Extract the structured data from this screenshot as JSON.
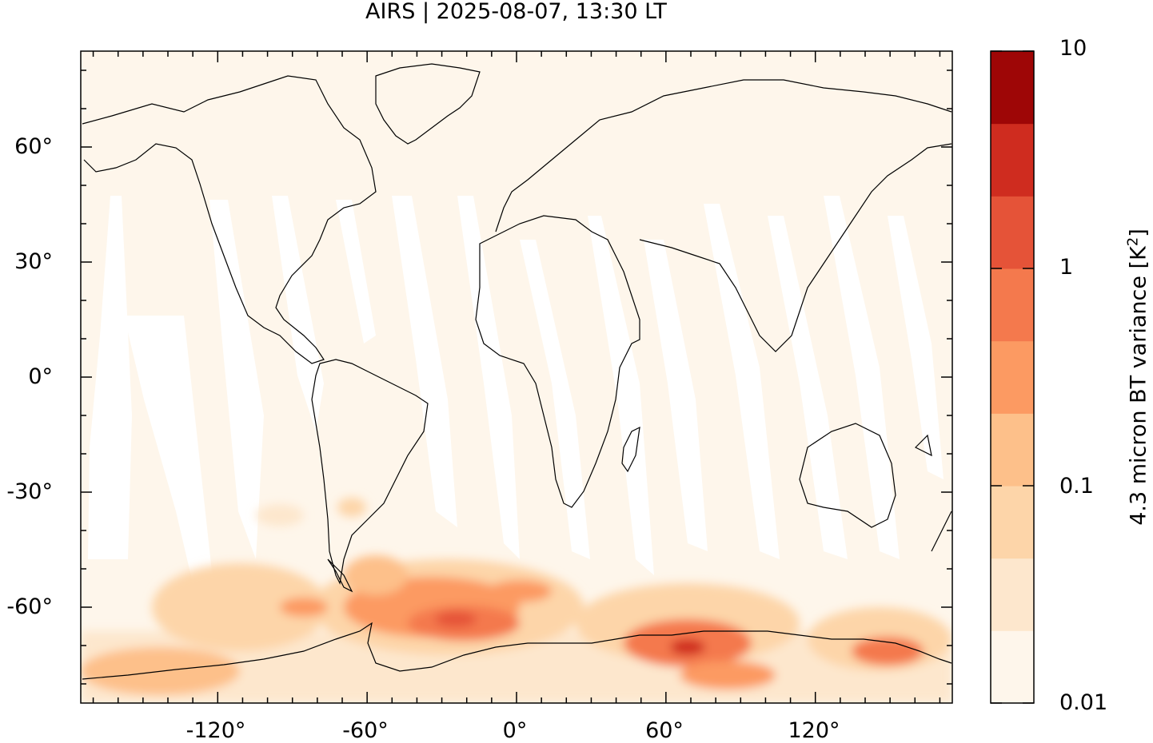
{
  "title": "AIRS | 2025-08-07, 13:30 LT",
  "lat_ticks": [
    "60°",
    "30°",
    "0°",
    "-30°",
    "-60°"
  ],
  "lon_ticks": [
    "-120°",
    "-60°",
    "0°",
    "60°",
    "120°"
  ],
  "colorbar": {
    "label_main": "4.3 micron BT variance [K",
    "label_sup": "2",
    "label_end": "]",
    "tick_labels": [
      "10",
      "1",
      "0.1",
      "0.01"
    ],
    "scale": "log",
    "range": [
      0.01,
      10
    ],
    "colors": [
      "#fef6eb",
      "#fde7cd",
      "#fdd5a9",
      "#fdc08a",
      "#fc9a62",
      "#f4794d",
      "#e55338",
      "#cf2c1f",
      "#9e0606"
    ]
  },
  "map": {
    "lon_range": [
      -175,
      175
    ],
    "lat_range": [
      -85,
      85
    ],
    "background_color": "#fef6eb",
    "gap_color": "#ffffff"
  }
}
